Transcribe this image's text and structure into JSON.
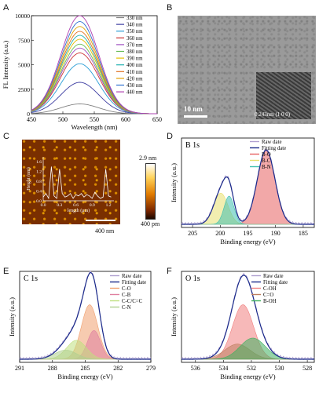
{
  "panels": {
    "A": {
      "letter": "A",
      "ylabel": "FL Intensity (a.u.)",
      "xlabel": "Wavelength (nm)",
      "yticks": [
        "0",
        "2500",
        "5000",
        "7500",
        "10000"
      ],
      "xticks": [
        "450",
        "500",
        "550",
        "600",
        "650"
      ],
      "legend": [
        "330 nm",
        "340 nm",
        "350 nm",
        "360 nm",
        "370 nm",
        "380 nm",
        "390 nm",
        "400 nm",
        "410 nm",
        "420 nm",
        "430 nm",
        "440 nm"
      ],
      "colors": [
        "#808080",
        "#3a3aa0",
        "#2c9fd6",
        "#cc3333",
        "#a050c0",
        "#66bb55",
        "#e5c000",
        "#20b0b0",
        "#e07020",
        "#e0a000",
        "#3070d0",
        "#b040b0"
      ]
    },
    "B": {
      "letter": "B",
      "scalebar": "10 nm",
      "inset_label": "0.243nm (1 0 0)"
    },
    "C": {
      "letter": "C",
      "ylabel": "Height (nm)",
      "xlabel": "length (μm)",
      "yticks": [
        "0.0",
        "0.4",
        "0.8",
        "1.2",
        "1.6"
      ],
      "xticks": [
        "0.0",
        "0.3",
        "0.6",
        "0.9",
        "1.2"
      ],
      "scale_top": "2.9 nm",
      "scale_bottom": "400 pm",
      "scalebar": "400 nm"
    },
    "D": {
      "letter": "D",
      "title": "B 1s",
      "ylabel": "Intensity (a.u.)",
      "xlabel": "Binding energy (eV)",
      "xticks": [
        "205",
        "200",
        "195",
        "190",
        "185"
      ],
      "legend": [
        "Raw date",
        "Fitting date",
        "B-O",
        "B-C",
        "B-N"
      ]
    },
    "E": {
      "letter": "E",
      "title": "C 1s",
      "ylabel": "Intensity (a.u.)",
      "xlabel": "Binding energy (eV)",
      "xticks": [
        "291",
        "288",
        "285",
        "282",
        "279"
      ],
      "legend": [
        "Raw date",
        "Fitting date",
        "C-O",
        "C-B",
        "C-C/C=C",
        "C-N"
      ]
    },
    "F": {
      "letter": "F",
      "title": "O 1s",
      "ylabel": "Intensity (a.u.)",
      "xlabel": "Binding energy (eV)",
      "xticks": [
        "536",
        "534",
        "532",
        "530",
        "528"
      ],
      "legend": [
        "Raw date",
        "Fitting date",
        "C-OH",
        "C=O",
        "B-OH"
      ]
    }
  },
  "chart_data": [
    {
      "type": "line",
      "panel": "A",
      "xlabel": "Wavelength (nm)",
      "ylabel": "FL Intensity (a.u.)",
      "xlim": [
        450,
        650
      ],
      "ylim": [
        0,
        10000
      ],
      "peak_x": 527,
      "series": [
        {
          "name": "330 nm",
          "peak": 1000
        },
        {
          "name": "340 nm",
          "peak": 3200
        },
        {
          "name": "350 nm",
          "peak": 5100
        },
        {
          "name": "360 nm",
          "peak": 6200
        },
        {
          "name": "370 nm",
          "peak": 6700
        },
        {
          "name": "380 nm",
          "peak": 7100
        },
        {
          "name": "390 nm",
          "peak": 7600
        },
        {
          "name": "400 nm",
          "peak": 8000
        },
        {
          "name": "410 nm",
          "peak": 8400
        },
        {
          "name": "420 nm",
          "peak": 8900
        },
        {
          "name": "430 nm",
          "peak": 9400
        },
        {
          "name": "440 nm",
          "peak": 10000
        }
      ]
    },
    {
      "type": "line",
      "panel": "C",
      "xlabel": "length (μm)",
      "ylabel": "Height (nm)",
      "xlim": [
        0,
        1.3
      ],
      "ylim": [
        0,
        1.8
      ],
      "x": [
        0.0,
        0.05,
        0.1,
        0.15,
        0.2,
        0.25,
        0.3,
        0.35,
        0.4,
        0.45,
        0.5,
        0.55,
        0.6,
        0.65,
        0.7,
        0.75,
        0.8,
        0.85,
        0.9,
        0.95,
        1.0,
        1.05,
        1.1,
        1.15,
        1.2,
        1.25
      ],
      "values": [
        0.15,
        0.3,
        0.1,
        1.4,
        0.2,
        0.1,
        1.3,
        0.3,
        0.15,
        0.2,
        0.3,
        0.1,
        0.25,
        0.2,
        0.3,
        0.15,
        0.25,
        0.2,
        0.1,
        0.35,
        0.2,
        0.1,
        0.15,
        1.3,
        0.2,
        0.15
      ]
    },
    {
      "type": "area",
      "panel": "D",
      "xlabel": "Binding energy (eV)",
      "xlim": [
        207,
        183
      ],
      "components": [
        {
          "name": "B-O",
          "center": 191.7,
          "height": 1.0,
          "width": 1.6,
          "color": "#e86060"
        },
        {
          "name": "B-C",
          "center": 199.9,
          "height": 0.42,
          "width": 1.3,
          "color": "#e8e070"
        },
        {
          "name": "B-N",
          "center": 198.4,
          "height": 0.38,
          "width": 0.9,
          "color": "#40c0b0"
        }
      ]
    },
    {
      "type": "area",
      "panel": "E",
      "xlabel": "Binding energy (eV)",
      "xlim": [
        291,
        279
      ],
      "components": [
        {
          "name": "C-O",
          "center": 284.6,
          "height": 0.72,
          "width": 0.75,
          "color": "#f0a070"
        },
        {
          "name": "C-B",
          "center": 284.2,
          "height": 0.38,
          "width": 0.6,
          "color": "#e080a0"
        },
        {
          "name": "C-C/C=C",
          "center": 285.8,
          "height": 0.25,
          "width": 0.9,
          "color": "#c0e080"
        },
        {
          "name": "C-N",
          "center": 286.8,
          "height": 0.12,
          "width": 1.0,
          "color": "#b0d090"
        }
      ]
    },
    {
      "type": "area",
      "panel": "F",
      "xlabel": "Binding energy (eV)",
      "xlim": [
        537,
        527.5
      ],
      "components": [
        {
          "name": "C-OH",
          "center": 532.6,
          "height": 0.72,
          "width": 0.75,
          "color": "#f08080"
        },
        {
          "name": "C=O",
          "center": 533.0,
          "height": 0.2,
          "width": 0.9,
          "color": "#c08060"
        },
        {
          "name": "B-OH",
          "center": 531.9,
          "height": 0.28,
          "width": 0.9,
          "color": "#40b060"
        }
      ]
    }
  ]
}
